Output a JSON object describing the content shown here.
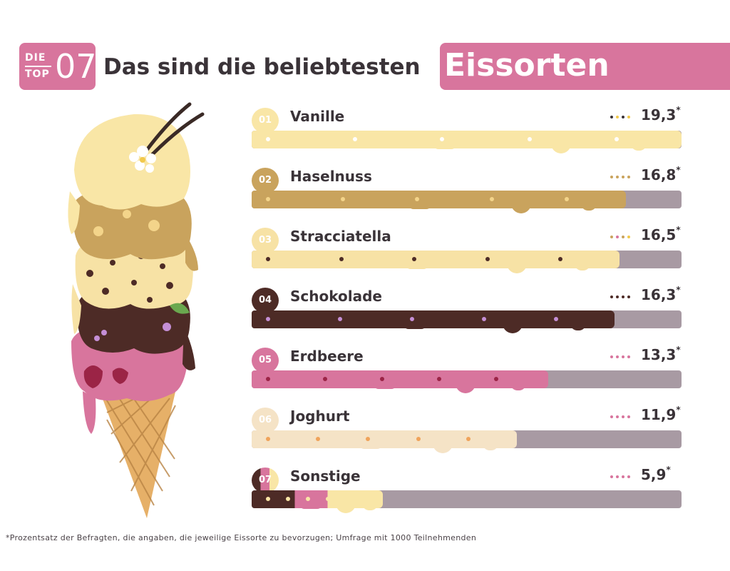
{
  "header": {
    "badge_die": "DIE",
    "badge_top": "TOP",
    "badge_num": "07",
    "title_prefix": "Das sind die beliebtesten",
    "title_highlight": "Eissorten"
  },
  "footnote": "*Prozentsatz der Befragten, die angaben, die jeweilige Eissorte zu bevorzugen; Umfrage mit 1000 Teilnehmenden",
  "colors": {
    "accent": "#d8759d",
    "track": "#a89aa3",
    "text": "#3a3338"
  },
  "chart_data": {
    "type": "bar",
    "orientation": "horizontal",
    "xlim": [
      0,
      19.3
    ],
    "categories": [
      "Vanille",
      "Haselnuss",
      "Stracciatella",
      "Schokolade",
      "Erdbeere",
      "Joghurt",
      "Sonstige"
    ],
    "ranks": [
      "01",
      "02",
      "03",
      "04",
      "05",
      "06",
      "07"
    ],
    "values": [
      19.3,
      16.8,
      16.5,
      16.3,
      13.3,
      11.9,
      5.9
    ],
    "value_labels": [
      "19,3",
      "16,8",
      "16,5",
      "16,3",
      "13,3",
      "11,9",
      "5,9"
    ],
    "value_suffix": "*",
    "bar_colors": [
      "#f9e6a6",
      "#c9a35d",
      "#f7e2a5",
      "#4d2b26",
      "#d8759d",
      "#f5e3c6",
      "#4d2b26"
    ]
  }
}
